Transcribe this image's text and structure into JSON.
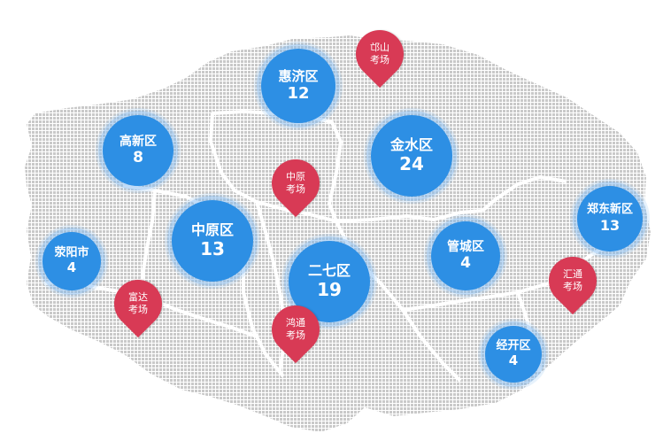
{
  "colors": {
    "district_fill": "#2d8fe4",
    "pin_fill": "#d83a55",
    "map_dots": "#c9c9c9",
    "boundary": "#ffffff"
  },
  "districts": [
    {
      "id": "huiji",
      "name": "惠济区",
      "count": "12"
    },
    {
      "id": "gaoxin",
      "name": "高新区",
      "count": "8"
    },
    {
      "id": "jinshui",
      "name": "金水区",
      "count": "24"
    },
    {
      "id": "zhengdong",
      "name": "郑东新区",
      "count": "13"
    },
    {
      "id": "xingyang",
      "name": "荥阳市",
      "count": "4"
    },
    {
      "id": "zhongyuan",
      "name": "中原区",
      "count": "13"
    },
    {
      "id": "erqi",
      "name": "二七区",
      "count": "19"
    },
    {
      "id": "guancheng",
      "name": "管城区",
      "count": "4"
    },
    {
      "id": "jingkai",
      "name": "经开区",
      "count": "4"
    }
  ],
  "exam_sites": [
    {
      "id": "qiushan",
      "line1": "邙山",
      "line2": "考场"
    },
    {
      "id": "zhongyuan-site",
      "line1": "中原",
      "line2": "考场"
    },
    {
      "id": "fuda",
      "line1": "富达",
      "line2": "考场"
    },
    {
      "id": "hongtong",
      "line1": "鸿通",
      "line2": "考场"
    },
    {
      "id": "huitong",
      "line1": "汇通",
      "line2": "考场"
    }
  ]
}
